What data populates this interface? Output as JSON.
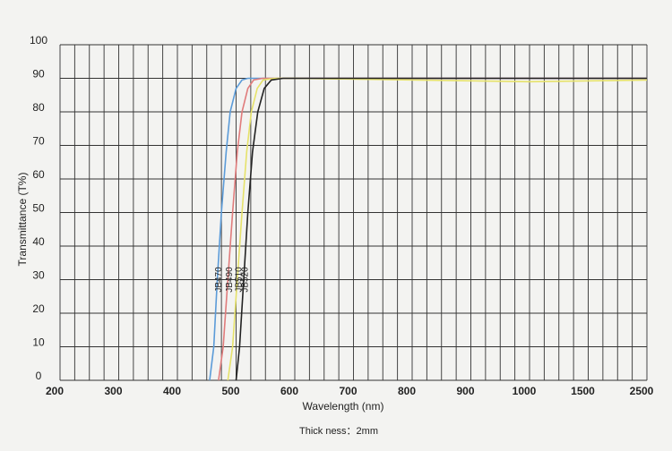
{
  "chart_data": {
    "type": "line",
    "x_label": "Wavelength (nm)",
    "y_label": "Transmittance (T%)",
    "caption": "Thick ness：2mm",
    "xlim": [
      200,
      2500
    ],
    "xticks": [
      200,
      300,
      400,
      500,
      600,
      700,
      800,
      900,
      1000,
      1500,
      2500
    ],
    "ylim": [
      0,
      100
    ],
    "yticks": [
      0,
      10,
      20,
      30,
      40,
      50,
      60,
      70,
      80,
      90,
      100
    ],
    "grid": true,
    "series": [
      {
        "name": "JB470",
        "color": "#5b9bd8",
        "x": [
          455,
          462,
          468,
          475,
          483,
          490,
          500,
          510,
          520,
          600,
          1000,
          2500
        ],
        "values": [
          0,
          10,
          30,
          50,
          68,
          80,
          87,
          89.5,
          90,
          90,
          90,
          90
        ]
      },
      {
        "name": "JB490",
        "color": "#e07c7c",
        "x": [
          470,
          478,
          486,
          494,
          502,
          510,
          520,
          530,
          545,
          600,
          1000,
          2500
        ],
        "values": [
          0,
          10,
          30,
          50,
          68,
          80,
          87,
          89.5,
          90,
          90,
          90,
          90
        ]
      },
      {
        "name": "JB510",
        "color": "#e6e26a",
        "x": [
          486,
          494,
          502,
          510,
          518,
          526,
          536,
          546,
          565,
          600,
          1000,
          2500
        ],
        "values": [
          0,
          10,
          30,
          50,
          68,
          80,
          87,
          89.5,
          90,
          90,
          89,
          89.5
        ]
      },
      {
        "name": "JB520",
        "color": "#222222",
        "x": [
          500,
          506,
          513,
          520,
          528,
          537,
          548,
          560,
          580,
          600,
          1000,
          2500
        ],
        "values": [
          0,
          10,
          30,
          50,
          68,
          80,
          87,
          89.5,
          90,
          90,
          90,
          90
        ]
      }
    ]
  }
}
